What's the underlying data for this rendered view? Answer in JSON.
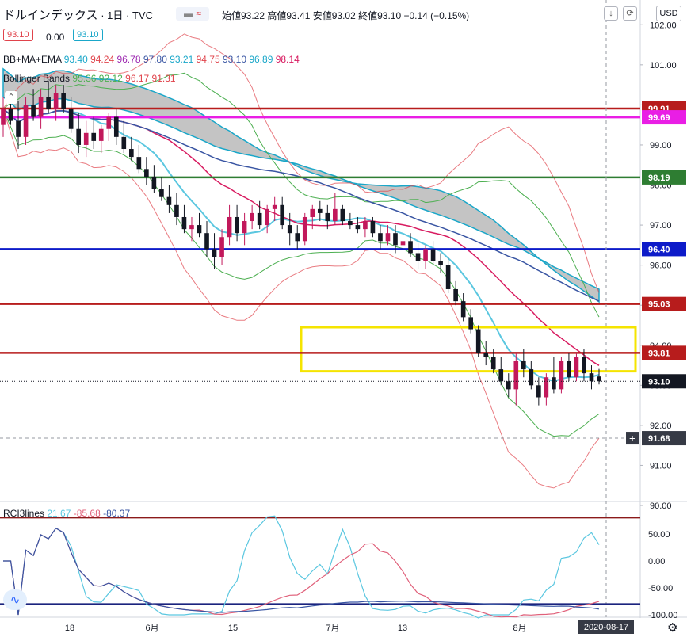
{
  "header": {
    "symbol": "ドルインデックス",
    "separator1": "·",
    "interval": "1日",
    "separator2": "·",
    "source": "TVC",
    "ohlc": "始値93.22 高値93.41 安値93.02 終値93.10 −0.14 (−0.15%)",
    "price_left": "93.10",
    "change": "0.00",
    "price_right": "93.10"
  },
  "indicators": {
    "bbmaema": {
      "name": "BB+MA+EMA",
      "values": [
        {
          "text": "93.40",
          "color": "#1aa7c9"
        },
        {
          "text": "94.24",
          "color": "#e0434b"
        },
        {
          "text": "96.78",
          "color": "#9c27b0"
        },
        {
          "text": "97.80",
          "color": "#3955a3"
        },
        {
          "text": "93.21",
          "color": "#1aa7c9"
        },
        {
          "text": "94.75",
          "color": "#e0434b"
        },
        {
          "text": "93.10",
          "color": "#3955a3"
        },
        {
          "text": "96.89",
          "color": "#1aa7c9"
        },
        {
          "text": "98.14",
          "color": "#d81b60"
        }
      ]
    },
    "bollinger": {
      "name": "Bollinger Bands",
      "values": [
        {
          "text": "95.36",
          "color": "#4caf50"
        },
        {
          "text": "92.12",
          "color": "#4caf50"
        },
        {
          "text": "96.17",
          "color": "#e0434b"
        },
        {
          "text": "91.31",
          "color": "#e0434b"
        }
      ]
    },
    "rci": {
      "name": "RCI3lines",
      "values": [
        {
          "text": "21.67",
          "color": "#5bc7e0"
        },
        {
          "text": "-85.68",
          "color": "#e0607a"
        },
        {
          "text": "-80.37",
          "color": "#3955a3"
        }
      ]
    }
  },
  "currency_button": "USD",
  "chart_data": {
    "type": "candlestick",
    "y_axis": {
      "min": 90,
      "max": 102.5,
      "ticks": [
        "90.00",
        "91.00",
        "92.00",
        "93.00",
        "94.00",
        "95.00",
        "96.00",
        "97.00",
        "98.00",
        "99.00",
        "100.00",
        "101.00",
        "102.00"
      ]
    },
    "x_tick_labels": [
      "18",
      "6月",
      "15",
      "7月",
      "13",
      "8月"
    ],
    "crosshair_date": "2020-08-17",
    "crosshair_price": "91.68",
    "horizontal_levels": [
      {
        "value": 99.91,
        "label": "99.91",
        "color": "#b71c1c"
      },
      {
        "value": 99.69,
        "label": "99.69",
        "color": "#e91ee5"
      },
      {
        "value": 98.19,
        "label": "98.19",
        "color": "#2e7d32"
      },
      {
        "value": 96.4,
        "label": "96.40",
        "color": "#0d1bc9"
      },
      {
        "value": 95.03,
        "label": "95.03",
        "color": "#b71c1c"
      },
      {
        "value": 93.81,
        "label": "93.81",
        "color": "#b71c1c"
      }
    ],
    "last_price": {
      "value": 93.1,
      "label": "93.10"
    },
    "highlight_zone": {
      "from": 93.35,
      "to": 94.45,
      "color": "#f5e400"
    },
    "candles": [
      [
        99.5,
        100.2,
        99.2,
        99.9
      ],
      [
        99.9,
        100.3,
        99.5,
        99.6
      ],
      [
        99.6,
        100.1,
        98.9,
        99.2
      ],
      [
        99.2,
        100.2,
        99.0,
        100.0
      ],
      [
        100.0,
        100.4,
        99.6,
        99.7
      ],
      [
        99.7,
        100.4,
        99.4,
        100.2
      ],
      [
        100.2,
        100.6,
        99.8,
        99.9
      ],
      [
        99.9,
        100.5,
        99.6,
        100.3
      ],
      [
        100.3,
        100.5,
        99.8,
        99.9
      ],
      [
        99.9,
        100.2,
        99.3,
        99.4
      ],
      [
        99.4,
        99.8,
        98.8,
        99.0
      ],
      [
        99.0,
        99.6,
        98.7,
        99.3
      ],
      [
        99.3,
        99.7,
        98.9,
        99.1
      ],
      [
        99.1,
        99.5,
        98.8,
        99.4
      ],
      [
        99.4,
        99.8,
        99.1,
        99.7
      ],
      [
        99.7,
        99.9,
        99.0,
        99.2
      ],
      [
        99.2,
        99.6,
        98.8,
        98.9
      ],
      [
        98.9,
        99.2,
        98.6,
        98.7
      ],
      [
        98.7,
        99.0,
        98.3,
        98.4
      ],
      [
        98.4,
        98.7,
        98.0,
        98.2
      ],
      [
        98.2,
        98.5,
        97.8,
        97.9
      ],
      [
        97.9,
        98.2,
        97.6,
        97.7
      ],
      [
        97.7,
        98.0,
        97.3,
        97.5
      ],
      [
        97.5,
        97.8,
        97.0,
        97.2
      ],
      [
        97.2,
        97.5,
        96.8,
        96.9
      ],
      [
        96.9,
        97.2,
        96.6,
        97.0
      ],
      [
        97.0,
        97.3,
        96.7,
        96.8
      ],
      [
        96.8,
        97.1,
        96.2,
        96.4
      ],
      [
        96.4,
        96.8,
        95.9,
        96.2
      ],
      [
        96.2,
        96.9,
        96.0,
        96.7
      ],
      [
        96.7,
        97.5,
        96.5,
        97.2
      ],
      [
        97.2,
        97.5,
        96.6,
        96.8
      ],
      [
        96.8,
        97.3,
        96.5,
        97.1
      ],
      [
        97.1,
        97.5,
        96.9,
        97.3
      ],
      [
        97.3,
        97.6,
        96.9,
        97.0
      ],
      [
        97.0,
        97.5,
        96.8,
        97.4
      ],
      [
        97.4,
        97.7,
        97.1,
        97.5
      ],
      [
        97.5,
        97.7,
        96.9,
        97.0
      ],
      [
        97.0,
        97.3,
        96.5,
        96.8
      ],
      [
        96.8,
        97.0,
        96.4,
        96.6
      ],
      [
        96.6,
        97.3,
        96.5,
        97.2
      ],
      [
        97.2,
        97.5,
        96.9,
        97.4
      ],
      [
        97.4,
        97.6,
        97.1,
        97.3
      ],
      [
        97.3,
        97.5,
        96.9,
        97.1
      ],
      [
        97.1,
        97.8,
        97.0,
        97.4
      ],
      [
        97.4,
        97.5,
        97.0,
        97.1
      ],
      [
        97.1,
        97.3,
        96.9,
        97.0
      ],
      [
        97.0,
        97.2,
        96.8,
        96.9
      ],
      [
        96.9,
        97.2,
        96.7,
        97.1
      ],
      [
        97.1,
        97.2,
        96.7,
        96.8
      ],
      [
        96.8,
        97.0,
        96.4,
        96.6
      ],
      [
        96.6,
        97.0,
        96.5,
        96.8
      ],
      [
        96.8,
        97.0,
        96.3,
        96.5
      ],
      [
        96.5,
        96.8,
        96.2,
        96.6
      ],
      [
        96.6,
        96.8,
        96.2,
        96.3
      ],
      [
        96.3,
        96.6,
        95.9,
        96.1
      ],
      [
        96.1,
        96.5,
        95.9,
        96.4
      ],
      [
        96.4,
        96.6,
        96.0,
        96.1
      ],
      [
        96.1,
        96.3,
        95.8,
        96.0
      ],
      [
        96.0,
        96.2,
        95.3,
        95.4
      ],
      [
        95.4,
        95.6,
        95.0,
        95.1
      ],
      [
        95.1,
        95.3,
        94.6,
        94.7
      ],
      [
        94.7,
        94.9,
        94.3,
        94.4
      ],
      [
        94.4,
        94.5,
        93.7,
        93.8
      ],
      [
        93.8,
        94.1,
        93.5,
        93.7
      ],
      [
        93.7,
        93.9,
        93.3,
        93.4
      ],
      [
        93.4,
        93.7,
        93.0,
        93.1
      ],
      [
        93.1,
        93.3,
        92.7,
        92.9
      ],
      [
        92.9,
        93.8,
        92.5,
        93.6
      ],
      [
        93.6,
        93.9,
        93.2,
        93.4
      ],
      [
        93.4,
        93.6,
        92.9,
        93.0
      ],
      [
        93.0,
        93.2,
        92.5,
        92.7
      ],
      [
        92.7,
        93.3,
        92.5,
        93.2
      ],
      [
        93.2,
        93.7,
        92.8,
        92.9
      ],
      [
        92.9,
        93.7,
        92.8,
        93.6
      ],
      [
        93.6,
        93.8,
        93.1,
        93.2
      ],
      [
        93.2,
        93.8,
        93.1,
        93.7
      ],
      [
        93.7,
        93.9,
        93.1,
        93.3
      ],
      [
        93.3,
        93.5,
        92.9,
        93.1
      ],
      [
        93.22,
        93.41,
        93.02,
        93.1
      ]
    ],
    "rci_axis": {
      "min": -100,
      "max": 100,
      "ticks": [
        "50.00",
        "0.00",
        "-50.00",
        "-100.00"
      ]
    },
    "rci_levels": [
      80,
      -80
    ]
  }
}
